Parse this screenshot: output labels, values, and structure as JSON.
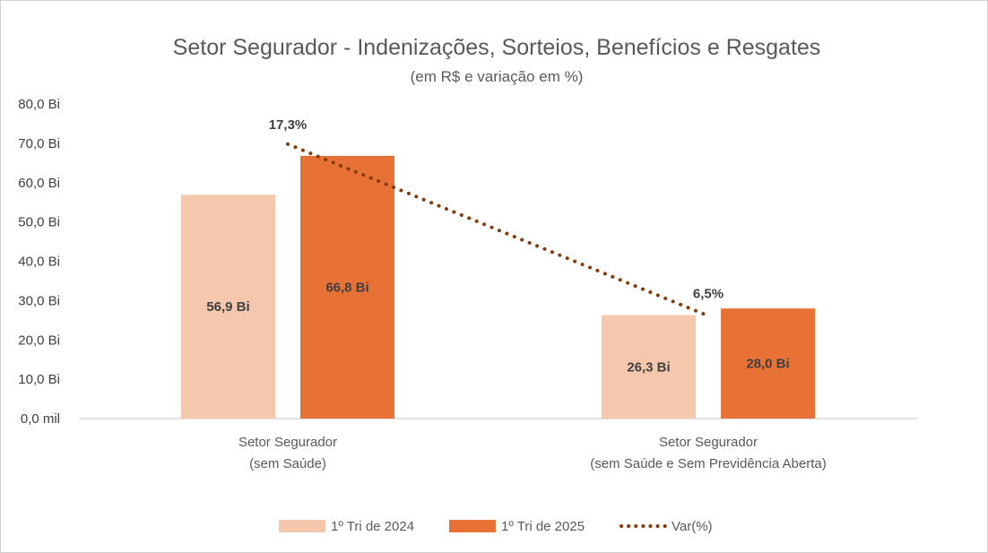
{
  "chart_data": {
    "type": "bar",
    "title": "Setor Segurador - Indenizações, Sorteios, Benefícios e Resgates",
    "subtitle": "(em R$ e variação em %)",
    "categories": [
      [
        "Setor Segurador",
        "(sem Saúde)"
      ],
      [
        "Setor Segurador",
        "(sem Saúde e Sem Previdência Aberta)"
      ]
    ],
    "series": [
      {
        "name": "1º Tri de 2024",
        "values": [
          56.9,
          26.3
        ],
        "labels": [
          "56,9 Bi",
          "26,3 Bi"
        ],
        "color": "#F5C8AE"
      },
      {
        "name": "1º Tri de 2025",
        "values": [
          66.8,
          28.0
        ],
        "labels": [
          "66,8 Bi",
          "28,0 Bi"
        ],
        "color": "#E87136"
      }
    ],
    "line": {
      "name": "Var(%)",
      "values": [
        69.8,
        26.3
      ],
      "labels": [
        "17,3%",
        "6,5%"
      ],
      "color": "#843C0C",
      "style": "dotted"
    },
    "ylim": [
      0,
      80
    ],
    "yticks": [
      0,
      10,
      20,
      30,
      40,
      50,
      60,
      70,
      80
    ],
    "ytick_labels": [
      "0,0 mil",
      "10,0 Bi",
      "20,0 Bi",
      "30,0 Bi",
      "40,0 Bi",
      "50,0 Bi",
      "60,0 Bi",
      "70,0 Bi",
      "80,0 Bi"
    ],
    "grid": false,
    "legend_position": "bottom"
  }
}
